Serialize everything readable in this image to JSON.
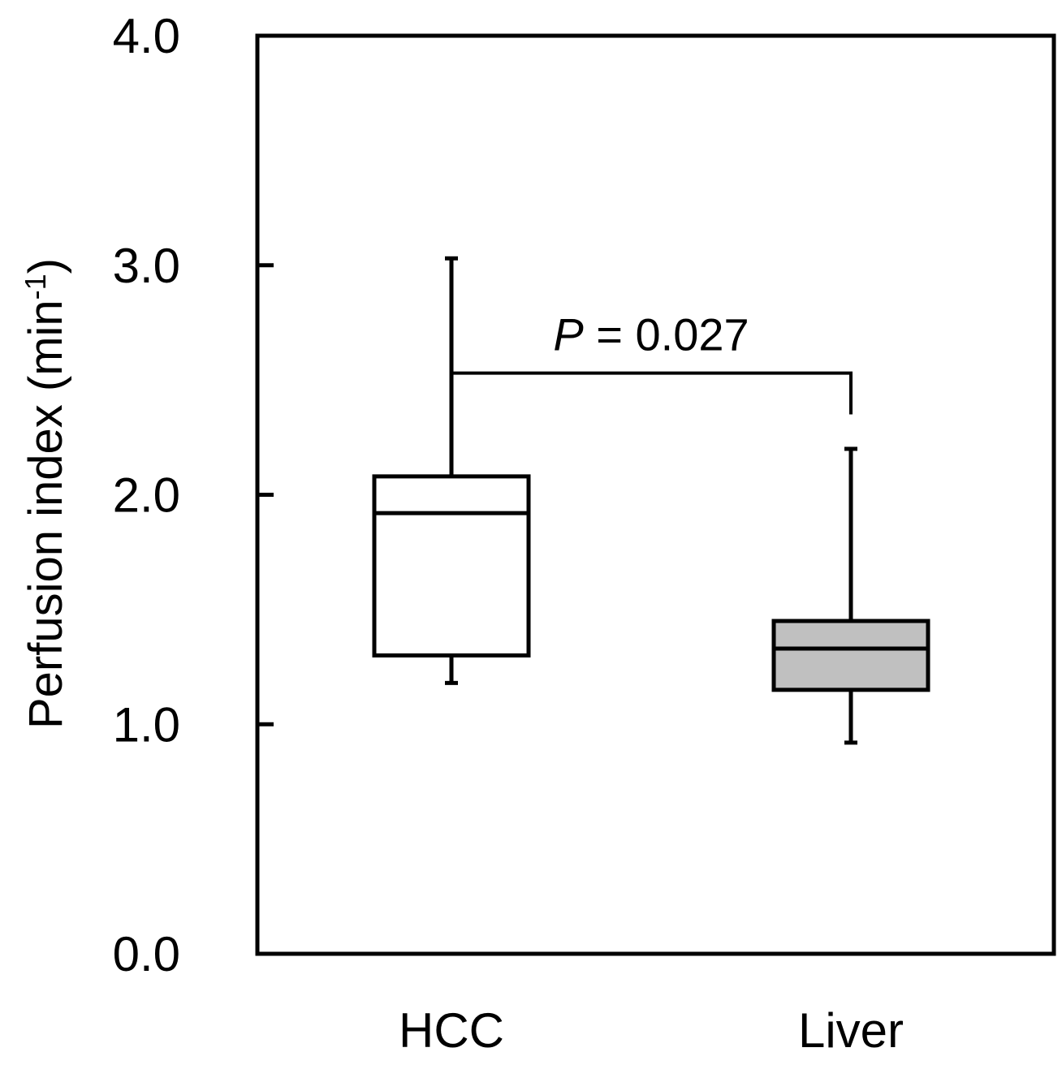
{
  "chart_data": {
    "type": "box",
    "title": "",
    "xlabel": "",
    "ylabel": "Perfusion index (min",
    "ylabel_superscript": "-1",
    "ylabel_close": ")",
    "ylim": [
      0.0,
      4.0
    ],
    "yticks": [
      {
        "value": 0.0,
        "label": "0.0"
      },
      {
        "value": 1.0,
        "label": "1.0"
      },
      {
        "value": 2.0,
        "label": "2.0"
      },
      {
        "value": 3.0,
        "label": "3.0"
      },
      {
        "value": 4.0,
        "label": "4.0"
      }
    ],
    "grid": false,
    "categories": [
      "HCC",
      "Liver"
    ],
    "boxes": [
      {
        "category": "HCC",
        "whisker_low": 1.18,
        "q1": 1.3,
        "median": 1.92,
        "q3": 2.08,
        "whisker_high": 3.03,
        "fill": "#ffffff"
      },
      {
        "category": "Liver",
        "whisker_low": 0.92,
        "q1": 1.15,
        "median": 1.33,
        "q3": 1.45,
        "whisker_high": 2.2,
        "fill": "#c0c0c0"
      }
    ],
    "annotation": {
      "p_symbol": "P",
      "p_rest": " = 0.027",
      "between": [
        "HCC",
        "Liver"
      ],
      "bracket_y": 2.35,
      "bracket_top": 2.53
    }
  }
}
